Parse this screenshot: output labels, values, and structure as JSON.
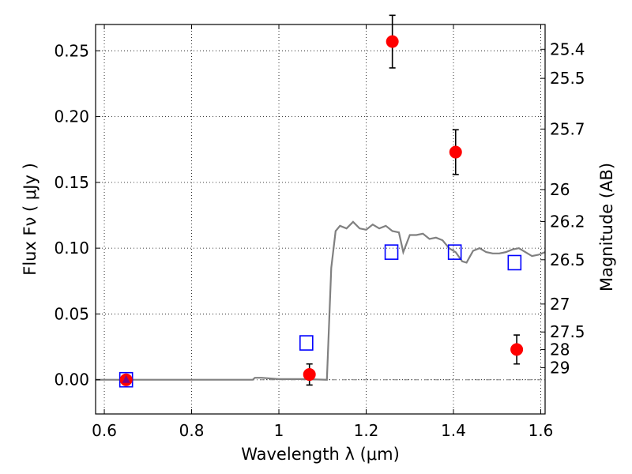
{
  "chart_data": {
    "type": "scatter",
    "xlabel": "Wavelength  λ (μm)",
    "ylabel": "Flux  Fν  ( μJy )",
    "ylabel_right": "Magnitude (AB)",
    "xlim": [
      0.58,
      1.61
    ],
    "ylim": [
      -0.026,
      0.27
    ],
    "grid": true,
    "x_ticks": [
      {
        "value": 0.6,
        "label": "0.6"
      },
      {
        "value": 0.8,
        "label": "0.8"
      },
      {
        "value": 1.0,
        "label": "1"
      },
      {
        "value": 1.2,
        "label": "1.2"
      },
      {
        "value": 1.4,
        "label": "1.4"
      },
      {
        "value": 1.6,
        "label": "1.6"
      }
    ],
    "y_ticks": [
      {
        "value": 0.0,
        "label": "0.00"
      },
      {
        "value": 0.05,
        "label": "0.05"
      },
      {
        "value": 0.1,
        "label": "0.10"
      },
      {
        "value": 0.15,
        "label": "0.15"
      },
      {
        "value": 0.2,
        "label": "0.20"
      },
      {
        "value": 0.25,
        "label": "0.25"
      }
    ],
    "y_right_ticks": [
      {
        "value": 25.4,
        "label": "25.4"
      },
      {
        "value": 25.5,
        "label": "25.5"
      },
      {
        "value": 25.7,
        "label": "25.7"
      },
      {
        "value": 26.0,
        "label": "26"
      },
      {
        "value": 26.2,
        "label": "26.2"
      },
      {
        "value": 26.5,
        "label": "26.5"
      },
      {
        "value": 27.0,
        "label": "27"
      },
      {
        "value": 27.5,
        "label": "27.5"
      },
      {
        "value": 28.0,
        "label": "28"
      },
      {
        "value": 29.0,
        "label": "29"
      }
    ],
    "series": [
      {
        "kind": "observed",
        "marker": "circle",
        "color": "#ff0000",
        "points": [
          {
            "x": 0.65,
            "y": 0.0,
            "err": 0.003
          },
          {
            "x": 1.07,
            "y": 0.004,
            "err": 0.008
          },
          {
            "x": 1.26,
            "y": 0.257,
            "err": 0.02
          },
          {
            "x": 1.405,
            "y": 0.173,
            "err": 0.017
          },
          {
            "x": 1.545,
            "y": 0.023,
            "err": 0.011
          }
        ]
      },
      {
        "kind": "upper_limit",
        "marker": "triangle",
        "color": "#800080",
        "points": [
          {
            "x": 0.65,
            "y": 0.0
          }
        ]
      },
      {
        "kind": "model_photometry",
        "marker": "square",
        "color": "#0000ff",
        "points": [
          {
            "x": 0.65,
            "y": 0.0
          },
          {
            "x": 1.063,
            "y": 0.028
          },
          {
            "x": 1.258,
            "y": 0.097
          },
          {
            "x": 1.403,
            "y": 0.097
          },
          {
            "x": 1.54,
            "y": 0.089
          }
        ]
      },
      {
        "kind": "model_sed",
        "marker": "line",
        "color": "#808080",
        "points": [
          {
            "x": 0.58,
            "y": 0.0
          },
          {
            "x": 0.94,
            "y": 0.0
          },
          {
            "x": 0.945,
            "y": 0.0015
          },
          {
            "x": 0.96,
            "y": 0.0015
          },
          {
            "x": 1.0,
            "y": 0.0005
          },
          {
            "x": 1.06,
            "y": 0.0005
          },
          {
            "x": 1.11,
            "y": 0.0
          },
          {
            "x": 1.12,
            "y": 0.085
          },
          {
            "x": 1.13,
            "y": 0.113
          },
          {
            "x": 1.14,
            "y": 0.117
          },
          {
            "x": 1.155,
            "y": 0.115
          },
          {
            "x": 1.17,
            "y": 0.12
          },
          {
            "x": 1.185,
            "y": 0.115
          },
          {
            "x": 1.2,
            "y": 0.114
          },
          {
            "x": 1.215,
            "y": 0.118
          },
          {
            "x": 1.23,
            "y": 0.115
          },
          {
            "x": 1.245,
            "y": 0.117
          },
          {
            "x": 1.26,
            "y": 0.113
          },
          {
            "x": 1.275,
            "y": 0.112
          },
          {
            "x": 1.285,
            "y": 0.097
          },
          {
            "x": 1.3,
            "y": 0.11
          },
          {
            "x": 1.315,
            "y": 0.11
          },
          {
            "x": 1.33,
            "y": 0.111
          },
          {
            "x": 1.345,
            "y": 0.107
          },
          {
            "x": 1.36,
            "y": 0.108
          },
          {
            "x": 1.375,
            "y": 0.106
          },
          {
            "x": 1.39,
            "y": 0.1
          },
          {
            "x": 1.405,
            "y": 0.097
          },
          {
            "x": 1.42,
            "y": 0.09
          },
          {
            "x": 1.43,
            "y": 0.089
          },
          {
            "x": 1.445,
            "y": 0.098
          },
          {
            "x": 1.46,
            "y": 0.1
          },
          {
            "x": 1.475,
            "y": 0.097
          },
          {
            "x": 1.49,
            "y": 0.096
          },
          {
            "x": 1.505,
            "y": 0.096
          },
          {
            "x": 1.52,
            "y": 0.097
          },
          {
            "x": 1.535,
            "y": 0.099
          },
          {
            "x": 1.55,
            "y": 0.1
          },
          {
            "x": 1.565,
            "y": 0.097
          },
          {
            "x": 1.58,
            "y": 0.094
          },
          {
            "x": 1.595,
            "y": 0.095
          },
          {
            "x": 1.61,
            "y": 0.097
          }
        ]
      }
    ],
    "reference_line": {
      "y": 0.0,
      "style": "dash-dot",
      "color": "#808080"
    }
  }
}
